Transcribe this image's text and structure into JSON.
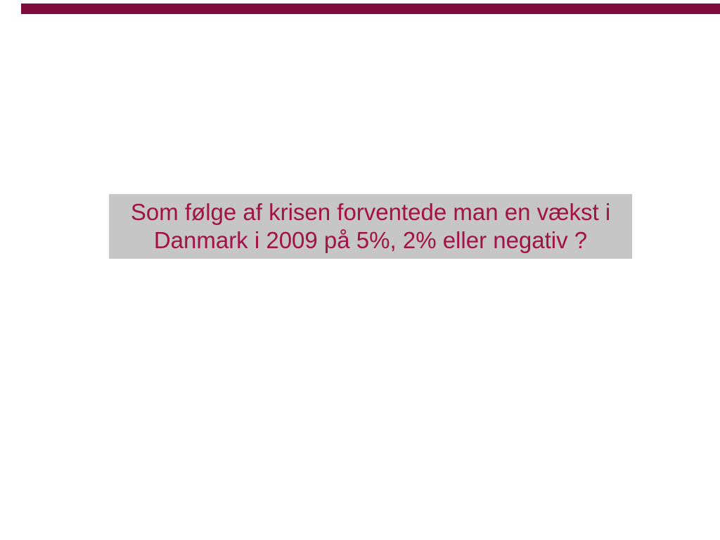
{
  "slide": {
    "background_color": "#FFFFFF",
    "accent_bar": {
      "color": "#7E0B3C"
    },
    "question_box": {
      "background_color": "#C6C6C6",
      "text_color": "#A11245",
      "line1": "Som følge af krisen forventede man en vækst i",
      "line2": "Danmark i 2009 på 5%, 2% eller negativ ?"
    }
  }
}
